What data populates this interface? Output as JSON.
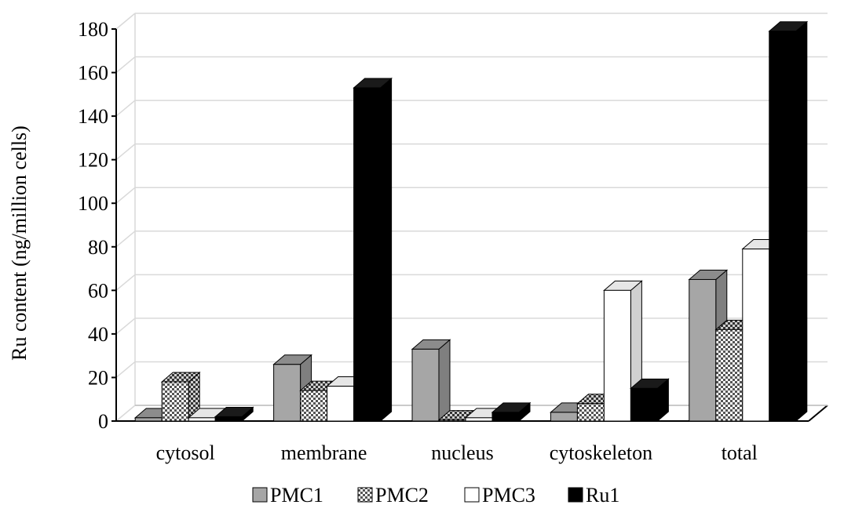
{
  "chart_data": {
    "type": "bar",
    "subtype": "3d-clustered-column",
    "ylabel": "Ru content (ng/million cells)",
    "xlabel": "",
    "ylim": [
      0,
      180
    ],
    "yticks": [
      "0",
      "20",
      "40",
      "60",
      "80",
      "100",
      "120",
      "140",
      "160",
      "180"
    ],
    "categories": [
      "cytosol",
      "membrane",
      "nucleus",
      "cytoskeleton",
      "total"
    ],
    "series": [
      {
        "name": "PMC1",
        "values": [
          1.5,
          26,
          33,
          4,
          65
        ],
        "fill": "#a6a6a6",
        "pattern": "solid"
      },
      {
        "name": "PMC2",
        "values": [
          18,
          14,
          0.5,
          8,
          42
        ],
        "fill": "#ffffff",
        "pattern": "checker"
      },
      {
        "name": "PMC3",
        "values": [
          1.5,
          16,
          1.5,
          60,
          79
        ],
        "fill": "#ffffff",
        "pattern": "solid"
      },
      {
        "name": "Ru1",
        "values": [
          2,
          153,
          4,
          15,
          179
        ],
        "fill": "#000000",
        "pattern": "solid"
      }
    ],
    "grid": true,
    "legend_position": "bottom"
  }
}
